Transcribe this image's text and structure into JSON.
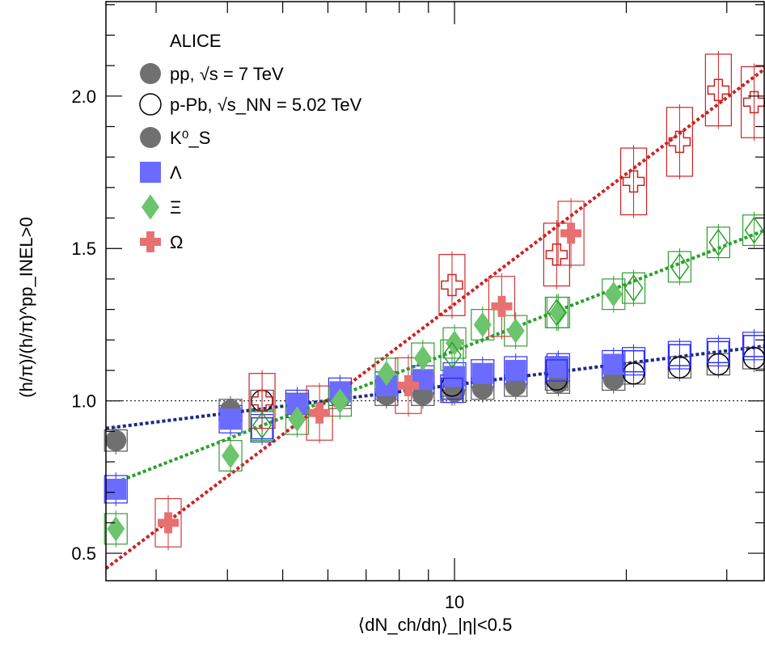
{
  "chart_data": {
    "type": "scatter",
    "title": "",
    "xlabel": "⟨dN_ch/dη⟩_|η|<0.5",
    "ylabel": "(h/π)/(h/π)^pp_INEL>0",
    "xscale": "log",
    "xlim": [
      2.45,
      35
    ],
    "ylim": [
      0.41,
      2.31
    ],
    "x_tick_labels": [
      "10"
    ],
    "y_tick_labels": [
      "0.5",
      "1.0",
      "1.5",
      "2.0"
    ],
    "reference_line_y": 1.0,
    "legend": {
      "title": "ALICE",
      "entries": [
        {
          "label": "pp, √s = 7 TeV",
          "marker": "filled-circle",
          "color": "#707070"
        },
        {
          "label": "p-Pb, √s_NN = 5.02 TeV",
          "marker": "open-circle",
          "color": "#000000"
        },
        {
          "label": "K⁰_S",
          "marker": "filled-circle",
          "color": "#707070"
        },
        {
          "label": "Λ",
          "marker": "square",
          "color": "#6b6bff"
        },
        {
          "label": "Ξ",
          "marker": "diamond",
          "color": "#6cc46c"
        },
        {
          "label": "Ω",
          "marker": "cross",
          "color": "#e87070"
        }
      ],
      "placement": "top-left"
    },
    "series": [
      {
        "name": "K⁰_S",
        "collision": "pp",
        "color": "#707070",
        "box_color": "#555555",
        "marker": "circle",
        "filled": true,
        "x": [
          2.55,
          4.05,
          5.3,
          6.3,
          7.6,
          8.8,
          10.0,
          11.2,
          12.8,
          15.2,
          19.0
        ],
        "y": [
          0.87,
          0.97,
          0.99,
          1.01,
          1.02,
          1.02,
          1.03,
          1.04,
          1.05,
          1.06,
          1.07
        ]
      },
      {
        "name": "K⁰_S",
        "collision": "p-Pb",
        "color": "#000000",
        "box_color": "#555555",
        "marker": "circle",
        "filled": false,
        "x": [
          4.6,
          9.9,
          15.1,
          20.6,
          24.8,
          29.0,
          33.5
        ],
        "y": [
          1.0,
          1.05,
          1.07,
          1.09,
          1.11,
          1.12,
          1.14
        ]
      },
      {
        "name": "Λ",
        "collision": "pp",
        "color": "#6b6bff",
        "box_color": "#2f2fff",
        "marker": "square",
        "filled": true,
        "x": [
          2.55,
          4.05,
          5.3,
          6.3,
          7.6,
          8.8,
          10.0,
          11.2,
          12.8,
          15.2,
          19.0
        ],
        "y": [
          0.71,
          0.94,
          0.99,
          1.03,
          1.05,
          1.07,
          1.08,
          1.09,
          1.1,
          1.11,
          1.12
        ]
      },
      {
        "name": "Λ",
        "collision": "p-Pb",
        "color": "#2f2fff",
        "box_color": "#2f2fff",
        "marker": "square",
        "filled": false,
        "x": [
          4.6,
          9.9,
          15.1,
          20.6,
          24.8,
          29.0,
          33.5
        ],
        "y": [
          0.91,
          1.04,
          1.1,
          1.13,
          1.15,
          1.16,
          1.18
        ]
      },
      {
        "name": "Ξ",
        "collision": "pp",
        "color": "#6cc46c",
        "box_color": "#3a9a3a",
        "marker": "diamond",
        "filled": true,
        "x": [
          2.55,
          4.05,
          5.3,
          6.3,
          7.6,
          8.8,
          10.0,
          11.2,
          12.8,
          15.2,
          19.0
        ],
        "y": [
          0.58,
          0.82,
          0.94,
          1.0,
          1.09,
          1.14,
          1.19,
          1.25,
          1.23,
          1.29,
          1.35
        ]
      },
      {
        "name": "Ξ",
        "collision": "p-Pb",
        "color": "#2aa02a",
        "box_color": "#2aa02a",
        "marker": "diamond",
        "filled": false,
        "x": [
          4.6,
          9.9,
          15.1,
          20.6,
          24.8,
          29.0,
          33.5
        ],
        "y": [
          0.92,
          1.15,
          1.29,
          1.37,
          1.44,
          1.52,
          1.56
        ]
      },
      {
        "name": "Ω",
        "collision": "pp",
        "color": "#e87070",
        "box_color": "#d03a3a",
        "marker": "cross",
        "filled": true,
        "x": [
          3.15,
          5.8,
          8.3,
          12.1,
          16.0
        ],
        "y": [
          0.6,
          0.96,
          1.05,
          1.31,
          1.55
        ]
      },
      {
        "name": "Ω",
        "collision": "p-Pb",
        "color": "#cc2222",
        "box_color": "#cc2222",
        "marker": "cross",
        "filled": false,
        "x": [
          4.6,
          9.9,
          15.1,
          20.6,
          24.8,
          29.0,
          33.5
        ],
        "y": [
          1.0,
          1.38,
          1.48,
          1.72,
          1.85,
          2.02,
          1.98
        ]
      }
    ],
    "fit_lines": [
      {
        "for": "K⁰_S/Λ",
        "color": "#1c2a80",
        "x": [
          2.45,
          35
        ],
        "y": [
          0.91,
          1.18
        ]
      },
      {
        "for": "Ξ",
        "color": "#2aa02a",
        "x": [
          2.45,
          35
        ],
        "y": [
          0.72,
          1.56
        ]
      },
      {
        "for": "Ω",
        "color": "#cc2222",
        "x": [
          2.45,
          35
        ],
        "y": [
          0.45,
          2.09
        ]
      }
    ]
  }
}
